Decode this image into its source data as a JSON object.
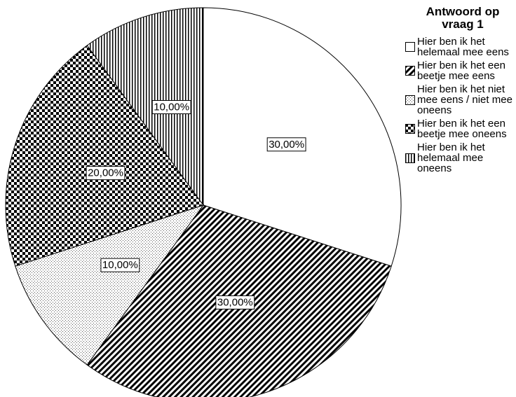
{
  "chart_data": {
    "type": "pie",
    "legend_title": "Antwoord op vraag 1",
    "categories": [
      "Hier ben ik het helemaal mee eens",
      "Hier ben ik het een beetje mee eens",
      "Hier ben ik het niet mee eens / niet mee oneens",
      "Hier ben ik het een beetje mee oneens",
      "Hier ben ik het helemaal mee oneens"
    ],
    "values": [
      30,
      30,
      10,
      20,
      10
    ],
    "value_labels": [
      "30,00%",
      "30,00%",
      "10,00%",
      "20,00%",
      "10,00%"
    ],
    "legend": "right"
  }
}
